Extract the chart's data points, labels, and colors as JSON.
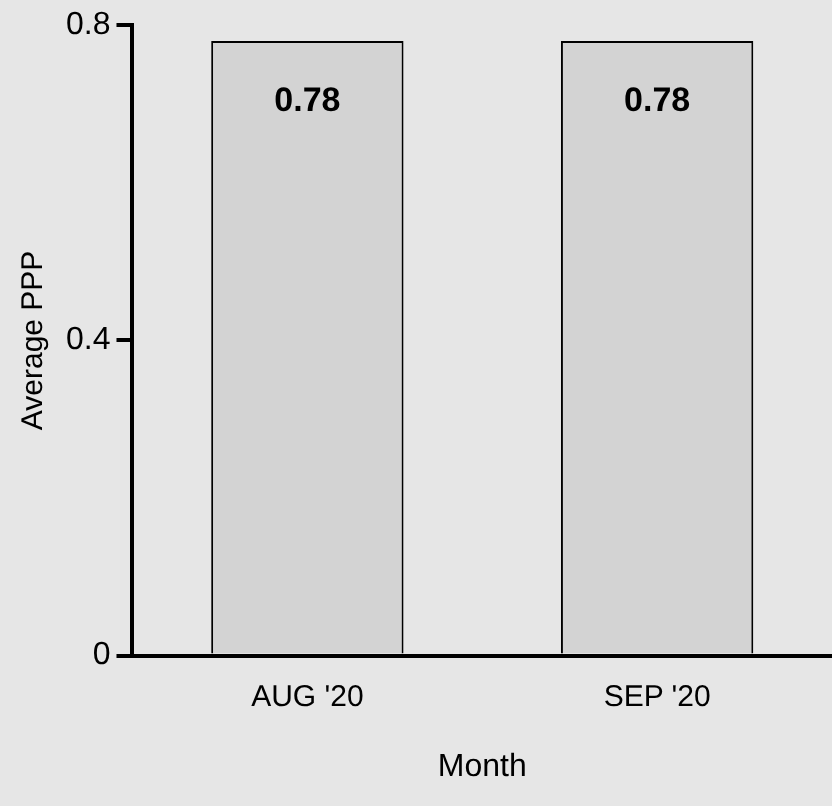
{
  "chart_data": {
    "type": "bar",
    "xlabel": "Month",
    "ylabel": "Average PPP",
    "categories": [
      "AUG '20",
      "SEP '20"
    ],
    "values": [
      0.78,
      0.78
    ],
    "color": "#d3d3d3",
    "ylim": [
      0,
      0.8
    ],
    "yticks": [
      0,
      0.4,
      0.8
    ],
    "grid": false,
    "legend": false,
    "data_labels": true
  }
}
